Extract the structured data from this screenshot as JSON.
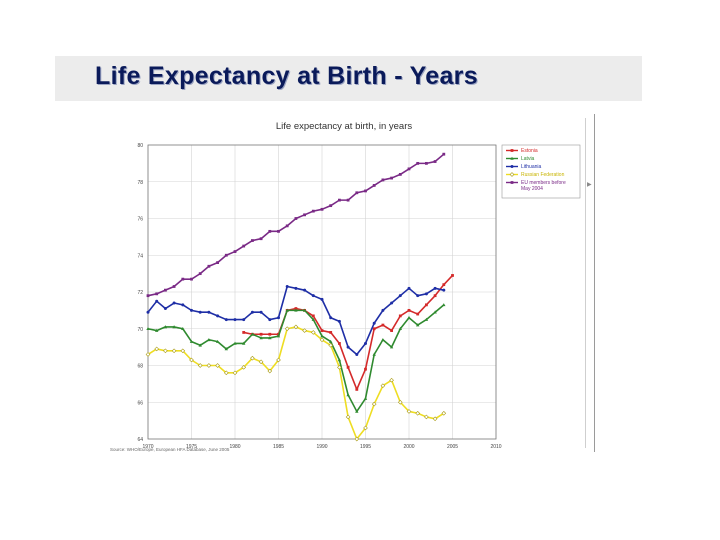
{
  "slide": {
    "title": "Life Expectancy at Birth - Years"
  },
  "chart_data": {
    "type": "line",
    "title": "Life expectancy at birth, in years",
    "xlim": [
      1970,
      2010
    ],
    "ylim": [
      64,
      80
    ],
    "xticks": [
      1970,
      1975,
      1980,
      1985,
      1990,
      1995,
      2000,
      2005,
      2010
    ],
    "yticks": [
      64,
      66,
      68,
      70,
      72,
      74,
      76,
      78,
      80
    ],
    "grid": true,
    "legend_position": "top-right",
    "source": "Source: WHO/Europe, European HFA Database, June 2005",
    "series": [
      {
        "name": "Estonia",
        "color": "#d42a2a",
        "marker": "square",
        "points": [
          [
            1981,
            69.8
          ],
          [
            1982,
            69.7
          ],
          [
            1983,
            69.7
          ],
          [
            1984,
            69.7
          ],
          [
            1985,
            69.7
          ],
          [
            1986,
            71.0
          ],
          [
            1987,
            71.1
          ],
          [
            1988,
            71.0
          ],
          [
            1989,
            70.7
          ],
          [
            1990,
            69.9
          ],
          [
            1991,
            69.8
          ],
          [
            1992,
            69.2
          ],
          [
            1993,
            67.9
          ],
          [
            1994,
            66.7
          ],
          [
            1995,
            67.8
          ],
          [
            1996,
            70.0
          ],
          [
            1997,
            70.2
          ],
          [
            1998,
            69.9
          ],
          [
            1999,
            70.7
          ],
          [
            2000,
            71.0
          ],
          [
            2001,
            70.8
          ],
          [
            2002,
            71.3
          ],
          [
            2003,
            71.8
          ],
          [
            2004,
            72.4
          ],
          [
            2005,
            72.9
          ]
        ]
      },
      {
        "name": "Latvia",
        "color": "#2f8a2f",
        "marker": "triangle",
        "points": [
          [
            1970,
            70.0
          ],
          [
            1971,
            69.9
          ],
          [
            1972,
            70.1
          ],
          [
            1973,
            70.1
          ],
          [
            1974,
            70.0
          ],
          [
            1975,
            69.3
          ],
          [
            1976,
            69.1
          ],
          [
            1977,
            69.4
          ],
          [
            1978,
            69.3
          ],
          [
            1979,
            68.9
          ],
          [
            1980,
            69.2
          ],
          [
            1981,
            69.2
          ],
          [
            1982,
            69.7
          ],
          [
            1983,
            69.5
          ],
          [
            1984,
            69.5
          ],
          [
            1985,
            69.6
          ],
          [
            1986,
            71.0
          ],
          [
            1987,
            71.0
          ],
          [
            1988,
            71.0
          ],
          [
            1989,
            70.5
          ],
          [
            1990,
            69.6
          ],
          [
            1991,
            69.3
          ],
          [
            1992,
            68.3
          ],
          [
            1993,
            66.4
          ],
          [
            1994,
            65.5
          ],
          [
            1995,
            66.2
          ],
          [
            1996,
            68.6
          ],
          [
            1997,
            69.4
          ],
          [
            1998,
            69.0
          ],
          [
            1999,
            70.0
          ],
          [
            2000,
            70.6
          ],
          [
            2001,
            70.2
          ],
          [
            2002,
            70.5
          ],
          [
            2003,
            70.9
          ],
          [
            2004,
            71.3
          ]
        ]
      },
      {
        "name": "Lithuania",
        "color": "#1e2ea6",
        "marker": "circle",
        "points": [
          [
            1970,
            70.9
          ],
          [
            1971,
            71.5
          ],
          [
            1972,
            71.1
          ],
          [
            1973,
            71.4
          ],
          [
            1974,
            71.3
          ],
          [
            1975,
            71.0
          ],
          [
            1976,
            70.9
          ],
          [
            1977,
            70.9
          ],
          [
            1978,
            70.7
          ],
          [
            1979,
            70.5
          ],
          [
            1980,
            70.5
          ],
          [
            1981,
            70.5
          ],
          [
            1982,
            70.9
          ],
          [
            1983,
            70.9
          ],
          [
            1984,
            70.5
          ],
          [
            1985,
            70.6
          ],
          [
            1986,
            72.3
          ],
          [
            1987,
            72.2
          ],
          [
            1988,
            72.1
          ],
          [
            1989,
            71.8
          ],
          [
            1990,
            71.6
          ],
          [
            1991,
            70.6
          ],
          [
            1992,
            70.4
          ],
          [
            1993,
            69.0
          ],
          [
            1994,
            68.6
          ],
          [
            1995,
            69.2
          ],
          [
            1996,
            70.3
          ],
          [
            1997,
            71.0
          ],
          [
            1998,
            71.4
          ],
          [
            1999,
            71.8
          ],
          [
            2000,
            72.2
          ],
          [
            2001,
            71.8
          ],
          [
            2002,
            71.9
          ],
          [
            2003,
            72.2
          ],
          [
            2004,
            72.1
          ]
        ]
      },
      {
        "name": "Russian Federation",
        "color": "#eedd22",
        "marker": "diamond",
        "points": [
          [
            1970,
            68.6
          ],
          [
            1971,
            68.9
          ],
          [
            1972,
            68.8
          ],
          [
            1973,
            68.8
          ],
          [
            1974,
            68.8
          ],
          [
            1975,
            68.3
          ],
          [
            1976,
            68.0
          ],
          [
            1977,
            68.0
          ],
          [
            1978,
            68.0
          ],
          [
            1979,
            67.6
          ],
          [
            1980,
            67.6
          ],
          [
            1981,
            67.9
          ],
          [
            1982,
            68.4
          ],
          [
            1983,
            68.2
          ],
          [
            1984,
            67.7
          ],
          [
            1985,
            68.3
          ],
          [
            1986,
            70.0
          ],
          [
            1987,
            70.1
          ],
          [
            1988,
            69.9
          ],
          [
            1989,
            69.8
          ],
          [
            1990,
            69.4
          ],
          [
            1991,
            69.1
          ],
          [
            1992,
            67.9
          ],
          [
            1993,
            65.2
          ],
          [
            1994,
            64.0
          ],
          [
            1995,
            64.6
          ],
          [
            1996,
            65.9
          ],
          [
            1997,
            66.9
          ],
          [
            1998,
            67.2
          ],
          [
            1999,
            66.0
          ],
          [
            2000,
            65.5
          ],
          [
            2001,
            65.4
          ],
          [
            2002,
            65.2
          ],
          [
            2003,
            65.1
          ],
          [
            2004,
            65.4
          ]
        ]
      },
      {
        "name": "EU members before May 2004",
        "color": "#7a2a86",
        "marker": "square",
        "points": [
          [
            1970,
            71.8
          ],
          [
            1971,
            71.9
          ],
          [
            1972,
            72.1
          ],
          [
            1973,
            72.3
          ],
          [
            1974,
            72.7
          ],
          [
            1975,
            72.7
          ],
          [
            1976,
            73.0
          ],
          [
            1977,
            73.4
          ],
          [
            1978,
            73.6
          ],
          [
            1979,
            74.0
          ],
          [
            1980,
            74.2
          ],
          [
            1981,
            74.5
          ],
          [
            1982,
            74.8
          ],
          [
            1983,
            74.9
          ],
          [
            1984,
            75.3
          ],
          [
            1985,
            75.3
          ],
          [
            1986,
            75.6
          ],
          [
            1987,
            76.0
          ],
          [
            1988,
            76.2
          ],
          [
            1989,
            76.4
          ],
          [
            1990,
            76.5
          ],
          [
            1991,
            76.7
          ],
          [
            1992,
            77.0
          ],
          [
            1993,
            77.0
          ],
          [
            1994,
            77.4
          ],
          [
            1995,
            77.5
          ],
          [
            1996,
            77.8
          ],
          [
            1997,
            78.1
          ],
          [
            1998,
            78.2
          ],
          [
            1999,
            78.4
          ],
          [
            2000,
            78.7
          ],
          [
            2001,
            79.0
          ],
          [
            2002,
            79.0
          ],
          [
            2003,
            79.1
          ],
          [
            2004,
            79.5
          ]
        ]
      }
    ]
  }
}
